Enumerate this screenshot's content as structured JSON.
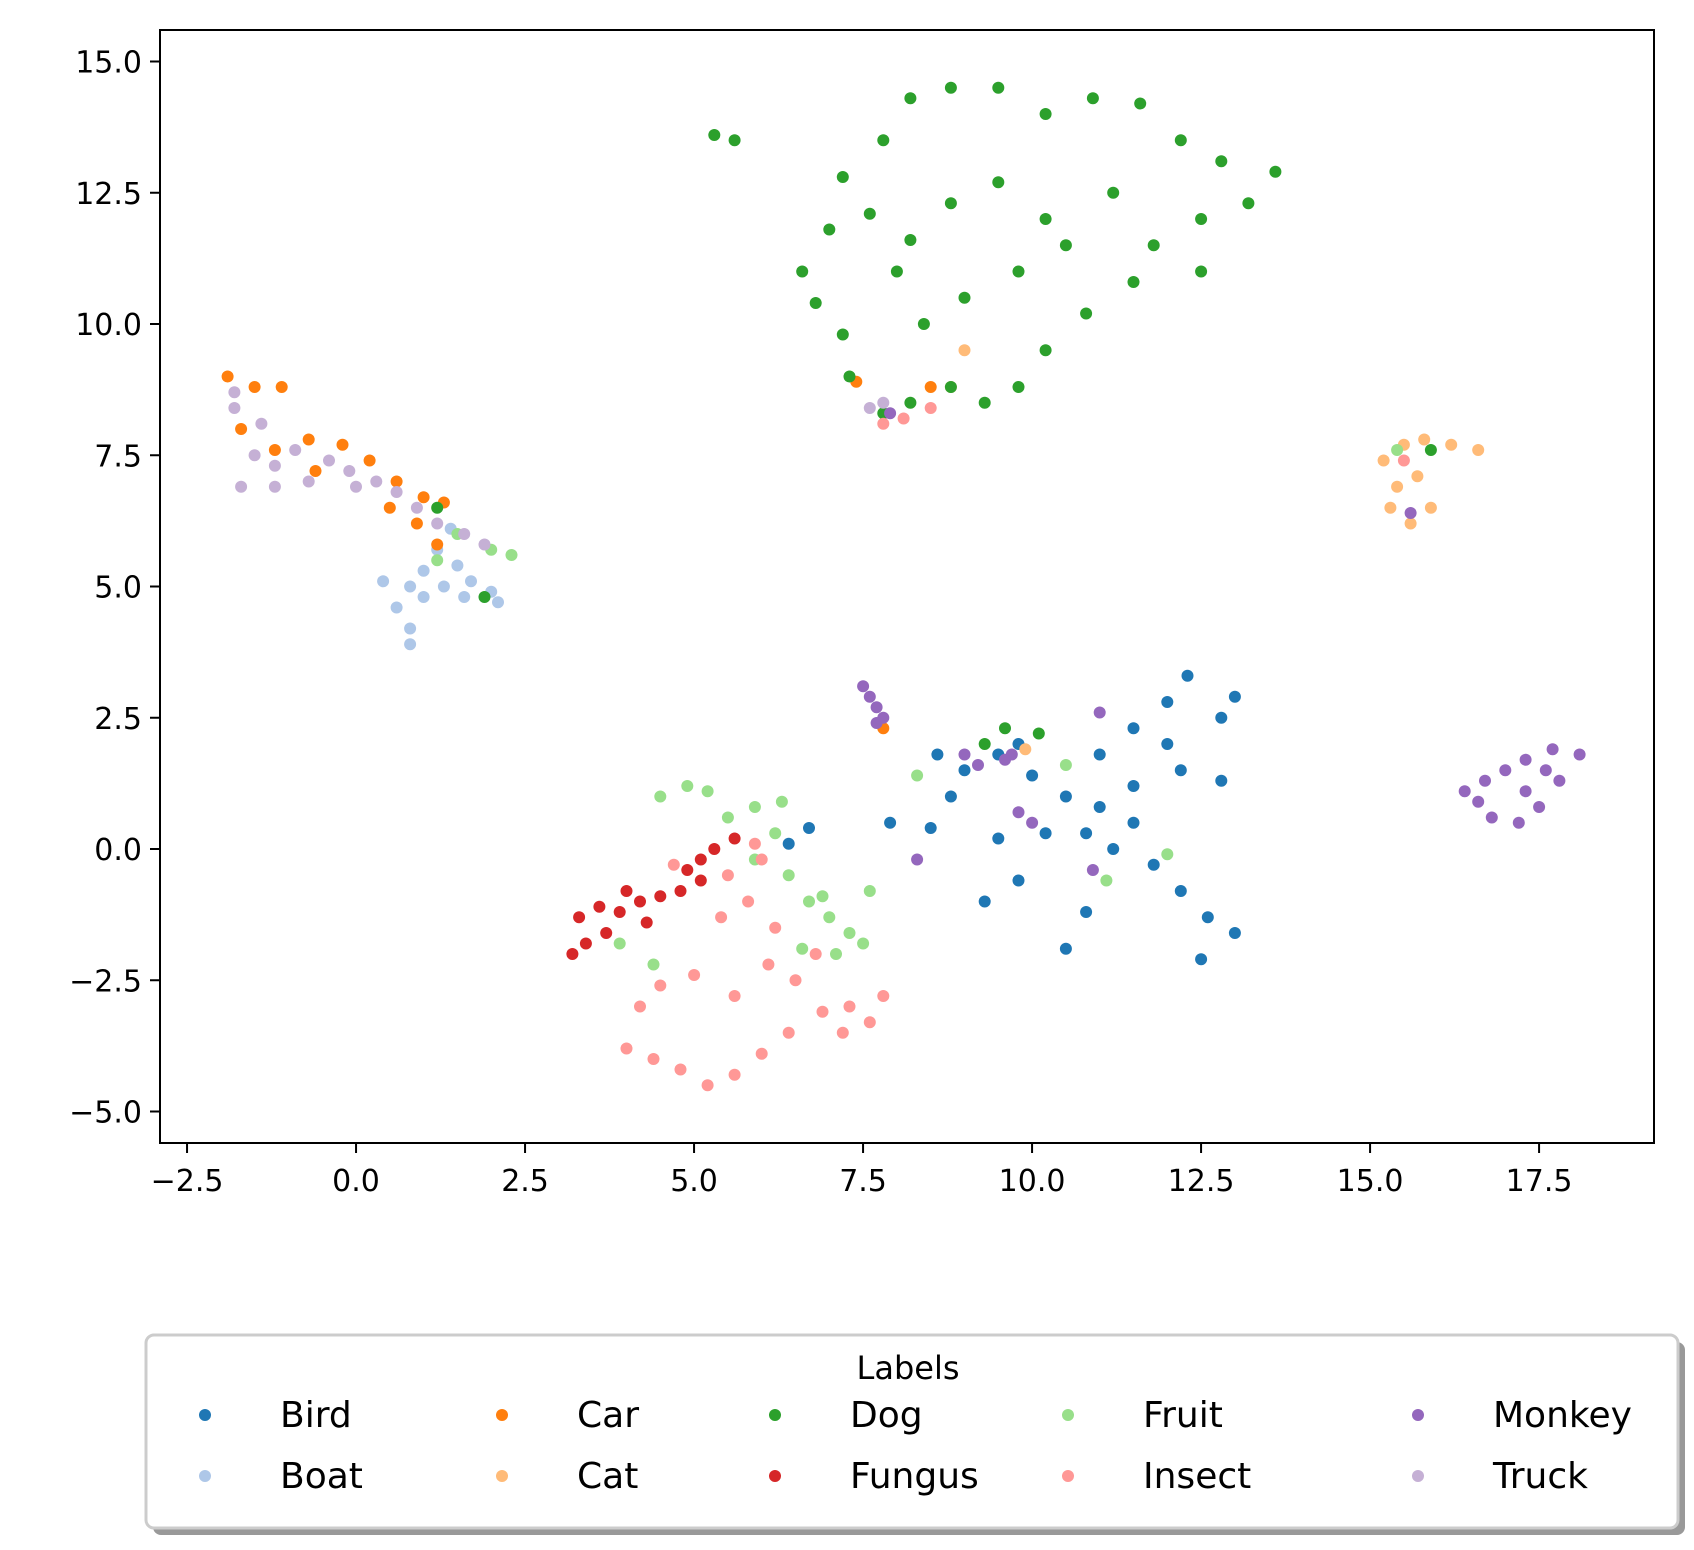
{
  "chart_data": {
    "type": "scatter",
    "title": "",
    "xlabel": "",
    "ylabel": "",
    "xlim": [
      -2.9,
      19.2
    ],
    "ylim": [
      -5.6,
      15.6
    ],
    "xticks": [
      -2.5,
      0.0,
      2.5,
      5.0,
      7.5,
      10.0,
      12.5,
      15.0,
      17.5
    ],
    "yticks": [
      -5.0,
      -2.5,
      0.0,
      2.5,
      5.0,
      7.5,
      10.0,
      12.5,
      15.0
    ],
    "xtick_labels": [
      "−2.5",
      "0.0",
      "2.5",
      "5.0",
      "7.5",
      "10.0",
      "12.5",
      "15.0",
      "17.5"
    ],
    "ytick_labels": [
      "−5.0",
      "−2.5",
      "0.0",
      "2.5",
      "5.0",
      "7.5",
      "10.0",
      "12.5",
      "15.0"
    ],
    "grid": false,
    "legend": {
      "title": "Labels",
      "placement": "below",
      "columns": 5
    },
    "series": [
      {
        "name": "Bird",
        "color": "#1f77b4",
        "points": [
          [
            9.0,
            1.5
          ],
          [
            9.5,
            1.8
          ],
          [
            10.0,
            1.4
          ],
          [
            10.5,
            1.0
          ],
          [
            11.0,
            0.8
          ],
          [
            11.5,
            0.5
          ],
          [
            11.0,
            1.8
          ],
          [
            11.5,
            2.3
          ],
          [
            12.0,
            2.8
          ],
          [
            12.3,
            3.3
          ],
          [
            12.8,
            2.5
          ],
          [
            13.0,
            2.9
          ],
          [
            12.2,
            1.5
          ],
          [
            12.8,
            1.3
          ],
          [
            11.2,
            0.0
          ],
          [
            11.8,
            -0.3
          ],
          [
            12.2,
            -0.8
          ],
          [
            12.6,
            -1.3
          ],
          [
            13.0,
            -1.6
          ],
          [
            12.5,
            -2.1
          ],
          [
            10.8,
            -1.2
          ],
          [
            10.5,
            -1.9
          ],
          [
            9.8,
            -0.6
          ],
          [
            9.3,
            -1.0
          ],
          [
            8.5,
            0.4
          ],
          [
            7.9,
            0.5
          ],
          [
            9.5,
            0.2
          ],
          [
            10.2,
            0.3
          ],
          [
            10.8,
            0.3
          ],
          [
            11.5,
            1.2
          ],
          [
            12.0,
            2.0
          ],
          [
            9.8,
            2.0
          ],
          [
            8.8,
            1.0
          ],
          [
            6.7,
            0.4
          ],
          [
            6.4,
            0.1
          ],
          [
            8.6,
            1.8
          ]
        ]
      },
      {
        "name": "Boat",
        "color": "#aec7e8",
        "points": [
          [
            0.8,
            5.0
          ],
          [
            1.0,
            5.3
          ],
          [
            1.2,
            5.7
          ],
          [
            1.5,
            5.4
          ],
          [
            1.7,
            5.1
          ],
          [
            2.0,
            4.9
          ],
          [
            0.6,
            4.6
          ],
          [
            0.8,
            4.2
          ],
          [
            0.8,
            3.9
          ],
          [
            0.4,
            5.1
          ],
          [
            1.4,
            6.1
          ],
          [
            2.1,
            4.7
          ],
          [
            1.0,
            4.8
          ],
          [
            1.3,
            5.0
          ],
          [
            1.6,
            4.8
          ]
        ]
      },
      {
        "name": "Car",
        "color": "#ff7f0e",
        "points": [
          [
            -1.9,
            9.0
          ],
          [
            -1.5,
            8.8
          ],
          [
            -1.1,
            8.8
          ],
          [
            -1.7,
            8.0
          ],
          [
            -1.2,
            7.6
          ],
          [
            -0.7,
            7.8
          ],
          [
            -0.2,
            7.7
          ],
          [
            0.2,
            7.4
          ],
          [
            0.6,
            7.0
          ],
          [
            1.0,
            6.7
          ],
          [
            1.3,
            6.6
          ],
          [
            0.9,
            6.2
          ],
          [
            0.5,
            6.5
          ],
          [
            -0.6,
            7.2
          ],
          [
            7.8,
            2.3
          ],
          [
            8.5,
            8.8
          ],
          [
            7.4,
            8.9
          ],
          [
            1.2,
            5.8
          ]
        ]
      },
      {
        "name": "Cat",
        "color": "#ffbb78",
        "points": [
          [
            15.2,
            7.4
          ],
          [
            15.5,
            7.7
          ],
          [
            15.8,
            7.8
          ],
          [
            16.2,
            7.7
          ],
          [
            16.6,
            7.6
          ],
          [
            15.4,
            6.9
          ],
          [
            15.3,
            6.5
          ],
          [
            15.6,
            6.2
          ],
          [
            15.9,
            6.5
          ],
          [
            15.7,
            7.1
          ],
          [
            9.0,
            9.5
          ],
          [
            8.8,
            8.8
          ],
          [
            9.9,
            1.9
          ]
        ]
      },
      {
        "name": "Dog",
        "color": "#2ca02c",
        "points": [
          [
            5.3,
            13.6
          ],
          [
            5.6,
            13.5
          ],
          [
            7.2,
            12.8
          ],
          [
            7.8,
            13.5
          ],
          [
            8.2,
            14.3
          ],
          [
            8.8,
            14.5
          ],
          [
            9.5,
            14.5
          ],
          [
            10.2,
            14.0
          ],
          [
            10.9,
            14.3
          ],
          [
            11.6,
            14.2
          ],
          [
            12.2,
            13.5
          ],
          [
            12.8,
            13.1
          ],
          [
            13.6,
            12.9
          ],
          [
            13.2,
            12.3
          ],
          [
            12.5,
            12.0
          ],
          [
            11.8,
            11.5
          ],
          [
            12.5,
            11.0
          ],
          [
            11.5,
            10.8
          ],
          [
            10.8,
            10.2
          ],
          [
            10.2,
            9.5
          ],
          [
            9.8,
            8.8
          ],
          [
            9.3,
            8.5
          ],
          [
            8.8,
            8.8
          ],
          [
            8.2,
            8.5
          ],
          [
            7.8,
            8.3
          ],
          [
            7.3,
            9.0
          ],
          [
            7.2,
            9.8
          ],
          [
            6.8,
            10.4
          ],
          [
            6.6,
            11.0
          ],
          [
            7.0,
            11.8
          ],
          [
            7.6,
            12.1
          ],
          [
            8.2,
            11.6
          ],
          [
            8.8,
            12.3
          ],
          [
            9.5,
            12.7
          ],
          [
            10.2,
            12.0
          ],
          [
            9.8,
            11.0
          ],
          [
            9.0,
            10.5
          ],
          [
            8.4,
            10.0
          ],
          [
            8.0,
            11.0
          ],
          [
            10.5,
            11.5
          ],
          [
            11.2,
            12.5
          ],
          [
            9.6,
            2.3
          ],
          [
            9.3,
            2.0
          ],
          [
            10.1,
            2.2
          ],
          [
            1.2,
            6.5
          ],
          [
            1.9,
            4.8
          ],
          [
            15.9,
            7.6
          ]
        ]
      },
      {
        "name": "Fungus",
        "color": "#d62728",
        "points": [
          [
            3.2,
            -2.0
          ],
          [
            3.4,
            -1.8
          ],
          [
            3.3,
            -1.3
          ],
          [
            3.6,
            -1.1
          ],
          [
            3.9,
            -1.2
          ],
          [
            4.2,
            -1.0
          ],
          [
            4.5,
            -0.9
          ],
          [
            4.8,
            -0.8
          ],
          [
            4.9,
            -0.4
          ],
          [
            5.1,
            -0.2
          ],
          [
            5.3,
            0.0
          ],
          [
            5.6,
            0.2
          ],
          [
            5.1,
            -0.6
          ],
          [
            3.7,
            -1.6
          ],
          [
            4.3,
            -1.4
          ],
          [
            4.0,
            -0.8
          ]
        ]
      },
      {
        "name": "Fruit",
        "color": "#98df8a",
        "points": [
          [
            4.5,
            1.0
          ],
          [
            4.9,
            1.2
          ],
          [
            5.2,
            1.1
          ],
          [
            5.5,
            0.6
          ],
          [
            5.9,
            0.8
          ],
          [
            6.3,
            0.9
          ],
          [
            6.2,
            0.3
          ],
          [
            5.9,
            -0.2
          ],
          [
            6.4,
            -0.5
          ],
          [
            6.7,
            -1.0
          ],
          [
            7.0,
            -1.3
          ],
          [
            7.3,
            -1.6
          ],
          [
            7.5,
            -1.8
          ],
          [
            7.1,
            -2.0
          ],
          [
            6.6,
            -1.9
          ],
          [
            6.9,
            -0.9
          ],
          [
            7.6,
            -0.8
          ],
          [
            2.0,
            5.7
          ],
          [
            2.3,
            5.6
          ],
          [
            1.5,
            6.0
          ],
          [
            1.2,
            5.5
          ],
          [
            8.3,
            1.4
          ],
          [
            10.5,
            1.6
          ],
          [
            11.1,
            -0.6
          ],
          [
            12.0,
            -0.1
          ],
          [
            3.9,
            -1.8
          ],
          [
            4.4,
            -2.2
          ],
          [
            15.4,
            7.6
          ]
        ]
      },
      {
        "name": "Insect",
        "color": "#ff9896",
        "points": [
          [
            4.2,
            -3.0
          ],
          [
            4.5,
            -2.6
          ],
          [
            4.0,
            -3.8
          ],
          [
            4.4,
            -4.0
          ],
          [
            4.8,
            -4.2
          ],
          [
            5.2,
            -4.5
          ],
          [
            5.6,
            -4.3
          ],
          [
            6.0,
            -3.9
          ],
          [
            6.4,
            -3.5
          ],
          [
            6.9,
            -3.1
          ],
          [
            7.3,
            -3.0
          ],
          [
            7.8,
            -2.8
          ],
          [
            7.6,
            -3.3
          ],
          [
            7.2,
            -3.5
          ],
          [
            6.5,
            -2.5
          ],
          [
            6.8,
            -2.0
          ],
          [
            6.2,
            -1.5
          ],
          [
            5.8,
            -1.0
          ],
          [
            5.5,
            -0.5
          ],
          [
            6.0,
            -0.2
          ],
          [
            5.9,
            0.1
          ],
          [
            5.4,
            -1.3
          ],
          [
            5.0,
            -2.4
          ],
          [
            5.6,
            -2.8
          ],
          [
            6.1,
            -2.2
          ],
          [
            7.8,
            8.1
          ],
          [
            8.1,
            8.2
          ],
          [
            8.5,
            8.4
          ],
          [
            15.5,
            7.4
          ],
          [
            4.7,
            -0.3
          ]
        ]
      },
      {
        "name": "Monkey",
        "color": "#9467bd",
        "points": [
          [
            16.4,
            1.1
          ],
          [
            16.7,
            1.3
          ],
          [
            17.0,
            1.5
          ],
          [
            17.3,
            1.7
          ],
          [
            17.7,
            1.9
          ],
          [
            18.1,
            1.8
          ],
          [
            17.8,
            1.3
          ],
          [
            17.5,
            0.8
          ],
          [
            17.2,
            0.5
          ],
          [
            16.8,
            0.6
          ],
          [
            16.6,
            0.9
          ],
          [
            17.3,
            1.1
          ],
          [
            17.6,
            1.5
          ],
          [
            7.5,
            3.1
          ],
          [
            7.6,
            2.9
          ],
          [
            7.7,
            2.7
          ],
          [
            7.8,
            2.5
          ],
          [
            7.7,
            2.4
          ],
          [
            9.0,
            1.8
          ],
          [
            9.2,
            1.6
          ],
          [
            9.6,
            1.7
          ],
          [
            11.0,
            2.6
          ],
          [
            9.8,
            0.7
          ],
          [
            10.0,
            0.5
          ],
          [
            10.9,
            -0.4
          ],
          [
            8.3,
            -0.2
          ],
          [
            15.6,
            6.4
          ],
          [
            7.9,
            8.3
          ],
          [
            9.7,
            1.8
          ]
        ]
      },
      {
        "name": "Truck",
        "color": "#c5b0d5",
        "points": [
          [
            -1.8,
            8.4
          ],
          [
            -1.4,
            8.1
          ],
          [
            -1.5,
            7.5
          ],
          [
            -1.2,
            7.3
          ],
          [
            -1.7,
            6.9
          ],
          [
            -1.2,
            6.9
          ],
          [
            -0.7,
            7.0
          ],
          [
            -0.4,
            7.4
          ],
          [
            -0.1,
            7.2
          ],
          [
            0.3,
            7.0
          ],
          [
            0.6,
            6.8
          ],
          [
            0.9,
            6.5
          ],
          [
            1.2,
            6.2
          ],
          [
            1.6,
            6.0
          ],
          [
            1.9,
            5.8
          ],
          [
            0.0,
            6.9
          ],
          [
            -0.9,
            7.6
          ],
          [
            -1.8,
            8.7
          ],
          [
            7.8,
            8.5
          ],
          [
            7.6,
            8.4
          ]
        ]
      }
    ]
  }
}
